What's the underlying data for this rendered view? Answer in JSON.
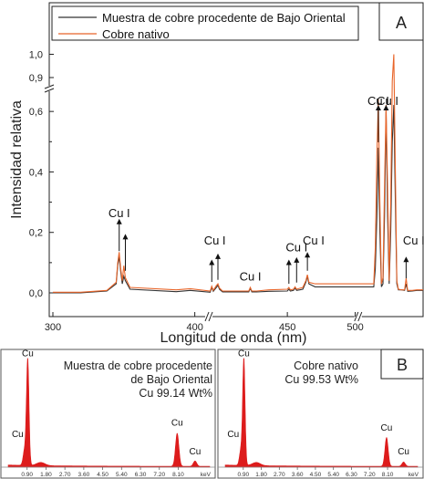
{
  "chart_data": [
    {
      "panel": "A",
      "type": "line",
      "xlabel": "Longitud de onda (nm)",
      "ylabel": "Intensidad relativa",
      "xlim": [
        300,
        540
      ],
      "x_axis_breaks": [
        [
          390,
          398
        ],
        [
          495,
          502
        ]
      ],
      "x_ticks": [
        "300",
        "400",
        "450",
        "500"
      ],
      "y_ticks": [
        "0,0",
        "0,2",
        "0,4",
        "0,6",
        "0,9",
        "1,0"
      ],
      "y_axis_break": [
        0.7,
        0.87
      ],
      "legend_position": "top",
      "grid": false,
      "series": [
        {
          "name": "Muestra de cobre procedente de Bajo Oriental",
          "color": "#333333",
          "x": [
            300,
            318,
            335,
            341,
            342,
            343,
            344,
            345,
            346,
            347,
            350,
            380,
            389,
            402,
            403,
            404,
            406,
            407,
            408,
            410,
            415,
            427,
            428,
            429,
            432,
            440,
            452,
            453,
            454,
            456,
            457,
            458,
            460,
            462,
            464,
            465,
            466,
            470,
            480,
            490,
            508,
            509,
            510,
            511,
            512,
            513,
            514,
            515,
            516,
            517,
            518,
            519,
            520,
            521,
            522,
            523,
            524,
            526,
            528,
            529,
            530,
            533,
            536,
            540
          ],
          "y": [
            0.0,
            0.0,
            0.006,
            0.03,
            0.09,
            0.12,
            0.07,
            0.03,
            0.055,
            0.04,
            0.012,
            0.004,
            0.008,
            0.002,
            0.018,
            0.005,
            0.018,
            0.025,
            0.012,
            0.003,
            0.003,
            0.003,
            0.015,
            0.003,
            0.003,
            0.005,
            0.006,
            0.012,
            0.006,
            0.008,
            0.016,
            0.008,
            0.01,
            0.012,
            0.035,
            0.055,
            0.03,
            0.02,
            0.02,
            0.02,
            0.02,
            0.08,
            0.25,
            0.48,
            0.2,
            0.02,
            0.03,
            0.25,
            0.6,
            0.25,
            0.03,
            0.2,
            0.5,
            0.72,
            0.3,
            0.03,
            0.01,
            0.01,
            0.008,
            0.03,
            0.005,
            0.006,
            0.008,
            0.008
          ]
        },
        {
          "name": "Cobre nativo",
          "color": "#e8652a",
          "x": [
            300,
            318,
            335,
            341,
            342,
            343,
            344,
            345,
            346,
            347,
            350,
            380,
            389,
            402,
            403,
            404,
            406,
            407,
            408,
            410,
            415,
            427,
            428,
            429,
            432,
            440,
            452,
            453,
            454,
            456,
            457,
            458,
            460,
            462,
            464,
            465,
            466,
            470,
            480,
            490,
            508,
            509,
            510,
            511,
            512,
            513,
            514,
            515,
            516,
            517,
            518,
            519,
            520,
            521,
            522,
            523,
            524,
            526,
            528,
            529,
            530,
            533,
            536,
            540
          ],
          "y": [
            0.002,
            0.002,
            0.008,
            0.035,
            0.1,
            0.135,
            0.08,
            0.04,
            0.09,
            0.05,
            0.018,
            0.01,
            0.014,
            0.006,
            0.022,
            0.008,
            0.024,
            0.03,
            0.016,
            0.006,
            0.006,
            0.006,
            0.018,
            0.006,
            0.006,
            0.01,
            0.012,
            0.018,
            0.01,
            0.012,
            0.02,
            0.012,
            0.015,
            0.018,
            0.04,
            0.06,
            0.035,
            0.03,
            0.03,
            0.03,
            0.03,
            0.15,
            0.45,
            0.64,
            0.3,
            0.03,
            0.05,
            0.35,
            0.8,
            0.35,
            0.04,
            0.3,
            0.7,
            1.0,
            0.4,
            0.04,
            0.012,
            0.01,
            0.01,
            0.048,
            0.008,
            0.008,
            0.01,
            0.01
          ]
        }
      ],
      "annotations": [
        {
          "text": "Cu I",
          "x": 343,
          "y": 0.25,
          "arrows": [
            [
              343,
              0.12,
              0.245
            ],
            [
              347,
              0.055,
              0.195
            ]
          ]
        },
        {
          "text": "Cu I",
          "x": 405,
          "y": 0.16,
          "arrows": [
            [
              403,
              0.018,
              0.11
            ],
            [
              407,
              0.025,
              0.13
            ]
          ]
        },
        {
          "text": "Cu I",
          "x": 428,
          "y": 0.04,
          "arrows": []
        },
        {
          "text": "Cu I",
          "x": 458,
          "y": 0.138,
          "arrows": [
            [
              453,
              0.012,
              0.11
            ],
            [
              458,
              0.016,
              0.118
            ]
          ]
        },
        {
          "text": "Cu I",
          "x": 469,
          "y": 0.16,
          "arrows": [
            [
              465,
              0.055,
              0.135
            ]
          ]
        },
        {
          "text": "Cu I",
          "x": 511,
          "y": 0.79,
          "arrows": [
            [
              511,
              0.48,
              0.77
            ]
          ]
        },
        {
          "text": "Cu I",
          "x": 517,
          "y": 0.76,
          "arrows": [
            [
              516,
              0.6,
              0.74
            ]
          ]
        },
        {
          "text": "Cu I",
          "x": 534,
          "y": 0.16,
          "arrows": [
            [
              529,
              0.03,
              0.12
            ]
          ]
        }
      ]
    },
    {
      "panel": "B",
      "type": "line",
      "subtitle_lines": [
        "Muestra de cobre procedente",
        "de Bajo Oriental",
        "Cu 99.14 Wt%"
      ],
      "xlabel": "keV",
      "x_ticks": [
        "0.90",
        "1.80",
        "2.70",
        "3.60",
        "4.50",
        "5.40",
        "6.30",
        "7.20",
        "8.10"
      ],
      "xlim": [
        0,
        9.6
      ],
      "ylim": [
        0,
        100
      ],
      "fill_color": "#dd1c1c",
      "peaks": [
        {
          "center": 0.93,
          "height": 100,
          "width": 0.06
        },
        {
          "center": 0.78,
          "height": 14,
          "width": 0.07
        },
        {
          "center": 1.55,
          "height": 3,
          "width": 0.2
        },
        {
          "center": 8.05,
          "height": 31,
          "width": 0.08
        },
        {
          "center": 8.9,
          "height": 5,
          "width": 0.08
        }
      ],
      "labels": [
        {
          "text": "Cu",
          "x": 0.93,
          "y": 104
        },
        {
          "text": "Cu",
          "x": 0.45,
          "y": 28
        },
        {
          "text": "Cu",
          "x": 8.05,
          "y": 39
        },
        {
          "text": "Cu",
          "x": 8.9,
          "y": 12
        }
      ]
    },
    {
      "panel": "B",
      "type": "line",
      "subtitle_lines": [
        "Cobre nativo",
        "Cu 99.53 Wt%"
      ],
      "xlabel": "keV",
      "x_ticks": [
        "0.90",
        "1.80",
        "2.70",
        "3.60",
        "4.50",
        "5.40",
        "6.30",
        "7.20",
        "8.10"
      ],
      "xlim": [
        0,
        9.6
      ],
      "ylim": [
        0,
        100
      ],
      "fill_color": "#dd1c1c",
      "peaks": [
        {
          "center": 0.93,
          "height": 100,
          "width": 0.06
        },
        {
          "center": 0.78,
          "height": 14,
          "width": 0.07
        },
        {
          "center": 1.55,
          "height": 3,
          "width": 0.2
        },
        {
          "center": 8.05,
          "height": 27,
          "width": 0.08
        },
        {
          "center": 8.9,
          "height": 4,
          "width": 0.08
        }
      ],
      "labels": [
        {
          "text": "Cu",
          "x": 0.93,
          "y": 104
        },
        {
          "text": "Cu",
          "x": 0.4,
          "y": 28
        },
        {
          "text": "Cu",
          "x": 8.05,
          "y": 34
        },
        {
          "text": "Cu",
          "x": 8.9,
          "y": 12
        }
      ]
    }
  ]
}
